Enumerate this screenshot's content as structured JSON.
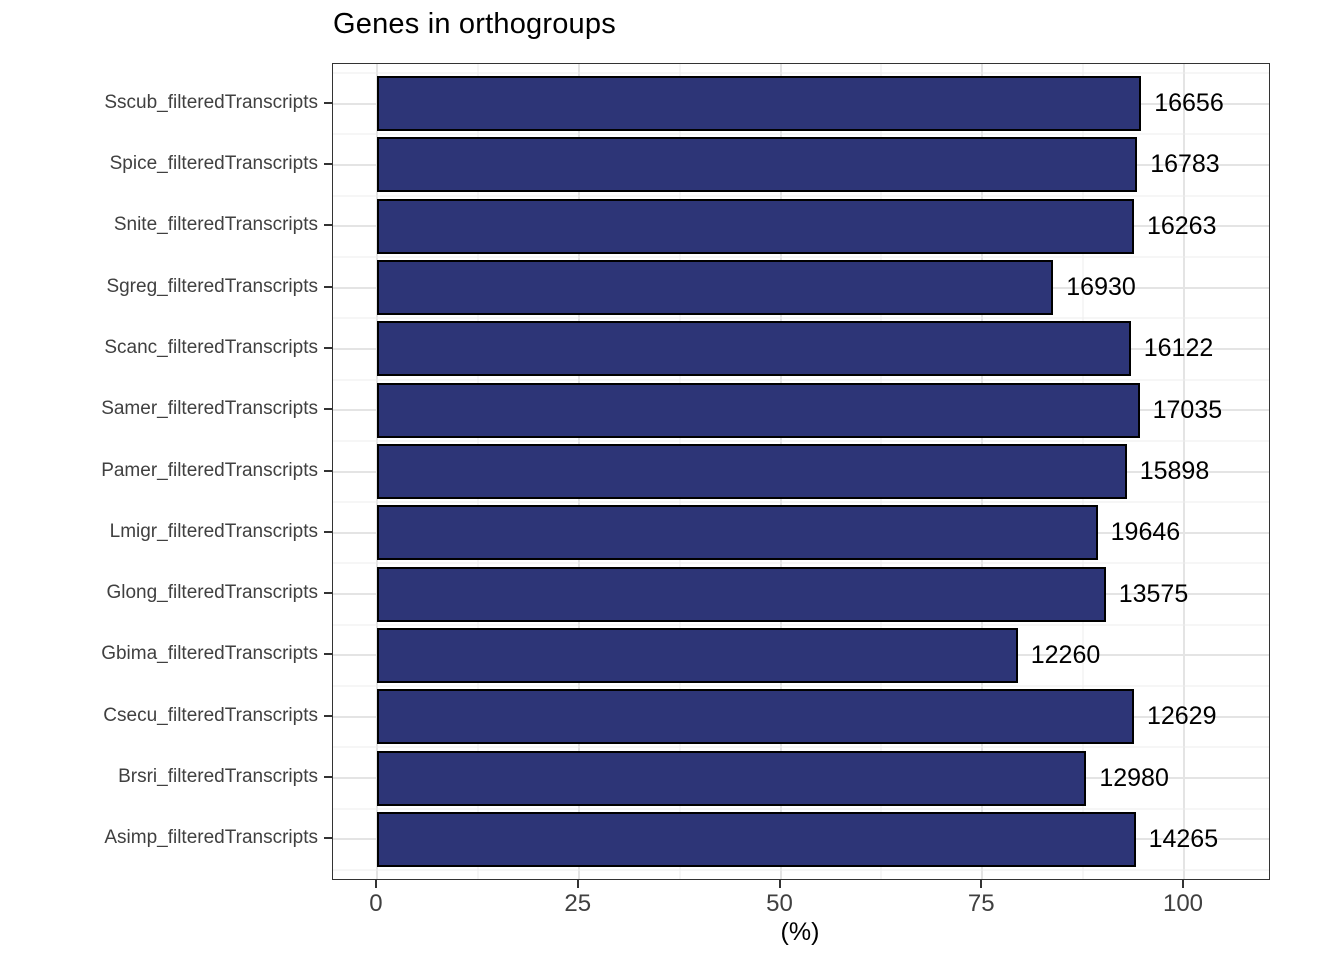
{
  "title": "Genes in orthogroups",
  "x_axis": {
    "label": "(%)"
  },
  "chart_data": {
    "type": "bar",
    "orientation": "horizontal",
    "title": "Genes in orthogroups",
    "xlabel": "(%)",
    "ylabel": "",
    "xlim": [
      -5.3,
      110.5
    ],
    "x_ticks": [
      0,
      25,
      50,
      75,
      100
    ],
    "grid": "major and minor gridlines on, light gray, panel border on",
    "legend": "none",
    "bar_fill_color": "#2d3577",
    "bar_border_color": "#000000",
    "categories": [
      "Sscub_filteredTranscripts",
      "Spice_filteredTranscripts",
      "Snite_filteredTranscripts",
      "Sgreg_filteredTranscripts",
      "Scanc_filteredTranscripts",
      "Samer_filteredTranscripts",
      "Pamer_filteredTranscripts",
      "Lmigr_filteredTranscripts",
      "Glong_filteredTranscripts",
      "Gbima_filteredTranscripts",
      "Csecu_filteredTranscripts",
      "Brsri_filteredTranscripts",
      "Asimp_filteredTranscripts"
    ],
    "values_pct": [
      94.7,
      94.2,
      93.8,
      83.8,
      93.4,
      94.5,
      92.9,
      89.3,
      90.3,
      79.4,
      93.8,
      87.9,
      94.0
    ],
    "bar_labels": [
      "16656",
      "16783",
      "16263",
      "16930",
      "16122",
      "17035",
      "15898",
      "19646",
      "13575",
      "12260",
      "12629",
      "12980",
      "14265"
    ]
  }
}
